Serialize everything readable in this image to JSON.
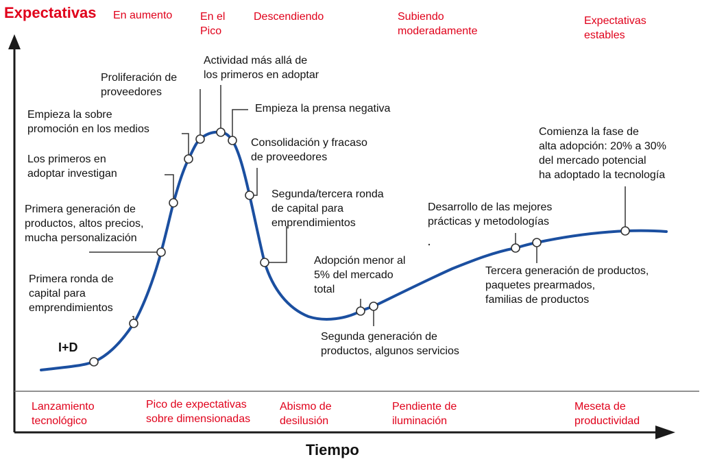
{
  "colors": {
    "curve": "#1b4fa0",
    "accent_red": "#e0001a",
    "text": "#111111",
    "axis": "#1a1a1a"
  },
  "axis": {
    "y_title": "Expectativas",
    "x_title": "Tiempo"
  },
  "top_phase_labels": [
    "En aumento",
    "En el\nPico",
    "Descendiendo",
    "Subiendo\nmoderadamente",
    "Expectativas\nestables"
  ],
  "bottom_phase_labels": [
    "Lanzamiento\ntecnológico",
    "Pico de expectativas\nsobre dimensionadas",
    "Abismo de\ndesilusión",
    "Pendiente de\niluminación",
    "Meseta de\nproductividad"
  ],
  "start_label": "I+D",
  "annotations": [
    "Primera ronda de\ncapital para\nemprendimientos",
    "Primera generación de\nproductos, altos precios,\nmucha personalización",
    "Los primeros en\nadoptar investigan",
    "Empieza la sobre\npromoción en los medios",
    "Proliferación de\nproveedores",
    "Actividad más allá de\nlos primeros en adoptar",
    "Empieza la prensa negativa",
    "Consolidación y fracaso\nde proveedores",
    "Segunda/tercera ronda\nde capital para\nemprendimientos",
    "Adopción menor al\n5% del mercado\ntotal",
    "Segunda generación de\nproductos, algunos servicios",
    "Desarrollo de las mejores\nprácticas y metodologías",
    "Tercera generación de productos,\npaquetes prearmados,\nfamilias de productos",
    "Comienza la fase de\nalta adopción: 20% a 30%\ndel mercado potencial\nha adoptado la tecnología"
  ]
}
